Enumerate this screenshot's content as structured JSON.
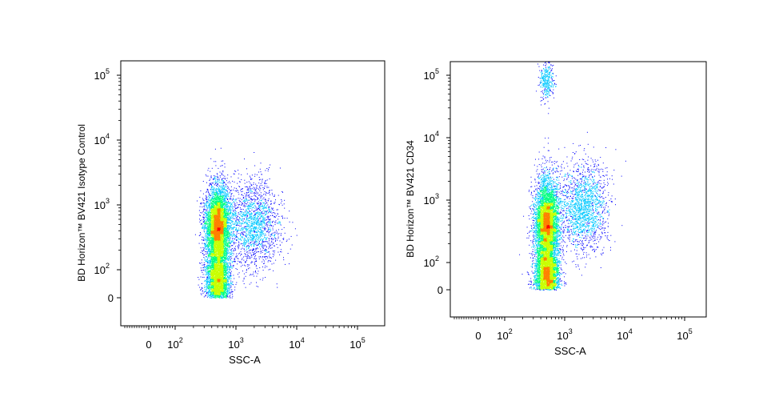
{
  "chart_data": [
    {
      "type": "scatter",
      "xlabel": "SSC-A",
      "ylabel": "BD Horizon™ BV421 Isotype Control",
      "x_scale": "biexponential",
      "y_scale": "biexponential",
      "x_ticks": [
        {
          "label": "0",
          "exp": "",
          "value": 0
        },
        {
          "label": "10",
          "exp": "2",
          "value": 100
        },
        {
          "label": "10",
          "exp": "3",
          "value": 1000
        },
        {
          "label": "10",
          "exp": "4",
          "value": 10000
        },
        {
          "label": "10",
          "exp": "5",
          "value": 100000
        }
      ],
      "y_ticks": [
        {
          "label": "0",
          "exp": "",
          "value": 0
        },
        {
          "label": "10",
          "exp": "2",
          "value": 100
        },
        {
          "label": "10",
          "exp": "3",
          "value": 1000
        },
        {
          "label": "10",
          "exp": "4",
          "value": 10000
        },
        {
          "label": "10",
          "exp": "5",
          "value": 100000
        }
      ],
      "populations": [
        {
          "name": "",
          "x_center": 500,
          "x_spread_decades": 0.1,
          "y_center": 350,
          "y_spread_decades": 0.35,
          "density": "high"
        },
        {
          "name": "",
          "x_center": 2000,
          "x_spread_decades": 0.22,
          "y_center": 500,
          "y_spread_decades": 0.35,
          "density": "low"
        }
      ],
      "grid": false,
      "legend": "none",
      "density_colors": [
        "#0000ff",
        "#00c8ff",
        "#00ff80",
        "#c8ff00",
        "#ff8000",
        "#ff0000"
      ]
    },
    {
      "type": "scatter",
      "xlabel": "SSC-A",
      "ylabel": "BD Horizon™ BV421 CD34",
      "x_scale": "biexponential",
      "y_scale": "biexponential",
      "x_ticks": [
        {
          "label": "0",
          "exp": "",
          "value": 0
        },
        {
          "label": "10",
          "exp": "2",
          "value": 100
        },
        {
          "label": "10",
          "exp": "3",
          "value": 1000
        },
        {
          "label": "10",
          "exp": "4",
          "value": 10000
        },
        {
          "label": "10",
          "exp": "5",
          "value": 100000
        }
      ],
      "y_ticks": [
        {
          "label": "0",
          "exp": "",
          "value": 0
        },
        {
          "label": "10",
          "exp": "2",
          "value": 100
        },
        {
          "label": "10",
          "exp": "3",
          "value": 1000
        },
        {
          "label": "10",
          "exp": "4",
          "value": 10000
        },
        {
          "label": "10",
          "exp": "5",
          "value": 100000
        }
      ],
      "populations": [
        {
          "name": "",
          "x_center": 500,
          "x_spread_decades": 0.1,
          "y_center": 300,
          "y_spread_decades": 0.4,
          "density": "high"
        },
        {
          "name": "",
          "x_center": 2000,
          "x_spread_decades": 0.2,
          "y_center": 800,
          "y_spread_decades": 0.35,
          "density": "low"
        },
        {
          "name": "",
          "x_center": 500,
          "x_spread_decades": 0.06,
          "y_center": 80000,
          "y_spread_decades": 0.15,
          "density": "low"
        }
      ],
      "grid": false,
      "legend": "none",
      "density_colors": [
        "#0000ff",
        "#00c8ff",
        "#00ff80",
        "#c8ff00",
        "#ff8000",
        "#ff0000"
      ]
    }
  ]
}
